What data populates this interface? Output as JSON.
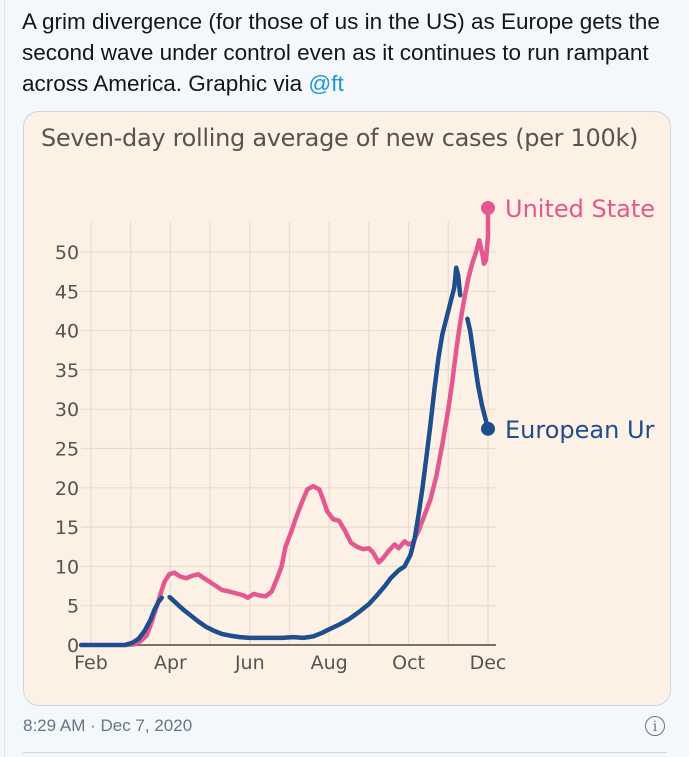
{
  "tweet": {
    "text_parts": [
      "A grim divergence (for those of us in the US) as Europe gets the second wave under control even as it continues to run rampant across America. Graphic via "
    ],
    "mention": "@ft",
    "timestamp": "8:29 AM · Dec 7, 2020",
    "info_icon": "info-circle-icon",
    "colors": {
      "text": "#14171a",
      "mention": "#1b95e0",
      "meta": "#657786"
    }
  },
  "chart_data": {
    "type": "line",
    "title": "Seven-day rolling average of new cases (per 100k)",
    "xlabel": "",
    "ylabel": "",
    "x_unit": "months since Feb 1, 2020",
    "xlim": [
      -0.25,
      10.1
    ],
    "ylim": [
      0,
      50
    ],
    "yticks": [
      0,
      5,
      10,
      15,
      20,
      25,
      30,
      35,
      40,
      45,
      50
    ],
    "xticks": [
      {
        "value": 0,
        "label": "Feb"
      },
      {
        "value": 2,
        "label": "Apr"
      },
      {
        "value": 4,
        "label": "Jun"
      },
      {
        "value": 6,
        "label": "Aug"
      },
      {
        "value": 8,
        "label": "Oct"
      },
      {
        "value": 10,
        "label": "Dec"
      }
    ],
    "grid": true,
    "legend": "inline-right-end-labels",
    "series": [
      {
        "name": "United States",
        "label_visible": "United State",
        "color": "#e5578f",
        "points": [
          [
            0.9,
            0
          ],
          [
            1.1,
            0.1
          ],
          [
            1.25,
            0.5
          ],
          [
            1.4,
            1.2
          ],
          [
            1.5,
            2.5
          ],
          [
            1.65,
            4.8
          ],
          [
            1.75,
            6.5
          ],
          [
            1.85,
            8.0
          ],
          [
            1.97,
            9.0
          ],
          [
            2.1,
            9.2
          ],
          [
            2.25,
            8.7
          ],
          [
            2.4,
            8.5
          ],
          [
            2.55,
            8.8
          ],
          [
            2.7,
            9.0
          ],
          [
            2.85,
            8.5
          ],
          [
            3.0,
            8.0
          ],
          [
            3.15,
            7.5
          ],
          [
            3.3,
            7.0
          ],
          [
            3.5,
            6.8
          ],
          [
            3.7,
            6.5
          ],
          [
            3.85,
            6.3
          ],
          [
            3.95,
            6.0
          ],
          [
            4.1,
            6.5
          ],
          [
            4.25,
            6.3
          ],
          [
            4.4,
            6.2
          ],
          [
            4.55,
            6.8
          ],
          [
            4.65,
            8.0
          ],
          [
            4.8,
            10.0
          ],
          [
            4.9,
            12.5
          ],
          [
            5.05,
            14.5
          ],
          [
            5.15,
            16.0
          ],
          [
            5.3,
            18.0
          ],
          [
            5.45,
            19.8
          ],
          [
            5.6,
            20.2
          ],
          [
            5.75,
            19.8
          ],
          [
            5.85,
            18.5
          ],
          [
            5.95,
            17.0
          ],
          [
            6.1,
            16.0
          ],
          [
            6.25,
            15.8
          ],
          [
            6.4,
            14.5
          ],
          [
            6.55,
            13.0
          ],
          [
            6.7,
            12.5
          ],
          [
            6.85,
            12.2
          ],
          [
            7.0,
            12.3
          ],
          [
            7.1,
            11.8
          ],
          [
            7.25,
            10.5
          ],
          [
            7.35,
            11.0
          ],
          [
            7.5,
            12.0
          ],
          [
            7.65,
            12.8
          ],
          [
            7.75,
            12.3
          ],
          [
            7.9,
            13.2
          ],
          [
            8.0,
            12.8
          ],
          [
            8.1,
            13.0
          ],
          [
            8.25,
            14.5
          ],
          [
            8.4,
            16.5
          ],
          [
            8.55,
            18.5
          ],
          [
            8.7,
            21.5
          ],
          [
            8.85,
            25.5
          ],
          [
            9.0,
            30.0
          ],
          [
            9.1,
            33.5
          ],
          [
            9.2,
            37.5
          ],
          [
            9.3,
            41.0
          ],
          [
            9.4,
            44.0
          ],
          [
            9.5,
            46.5
          ],
          [
            9.6,
            48.5
          ],
          [
            9.7,
            50.0
          ],
          [
            9.78,
            51.5
          ],
          [
            9.85,
            50.0
          ],
          [
            9.9,
            48.5
          ],
          [
            9.95,
            49.0
          ],
          [
            10.0,
            52.0
          ],
          [
            10.0,
            55.6
          ]
        ],
        "end_value": 55.6
      },
      {
        "name": "European Union",
        "label_visible": "European Ur",
        "color": "#1f4e8f",
        "points": [
          [
            -0.25,
            0
          ],
          [
            0.25,
            0
          ],
          [
            0.6,
            0
          ],
          [
            0.85,
            0
          ],
          [
            1.05,
            0.3
          ],
          [
            1.2,
            0.8
          ],
          [
            1.35,
            1.8
          ],
          [
            1.5,
            3.2
          ],
          [
            1.6,
            4.5
          ],
          [
            1.7,
            5.5
          ],
          [
            1.78,
            6.0
          ],
          [
            null,
            null
          ],
          [
            1.98,
            6.1
          ],
          [
            2.15,
            5.3
          ],
          [
            2.3,
            4.6
          ],
          [
            2.5,
            3.8
          ],
          [
            2.7,
            3.0
          ],
          [
            2.9,
            2.3
          ],
          [
            3.1,
            1.8
          ],
          [
            3.3,
            1.4
          ],
          [
            3.5,
            1.2
          ],
          [
            3.75,
            1.0
          ],
          [
            4.0,
            0.9
          ],
          [
            4.4,
            0.9
          ],
          [
            4.8,
            0.9
          ],
          [
            5.1,
            1.0
          ],
          [
            5.35,
            0.9
          ],
          [
            5.6,
            1.1
          ],
          [
            5.8,
            1.5
          ],
          [
            6.0,
            2.0
          ],
          [
            6.25,
            2.6
          ],
          [
            6.5,
            3.3
          ],
          [
            6.75,
            4.2
          ],
          [
            7.0,
            5.2
          ],
          [
            7.2,
            6.3
          ],
          [
            7.4,
            7.5
          ],
          [
            7.55,
            8.5
          ],
          [
            7.75,
            9.5
          ],
          [
            7.9,
            10.0
          ],
          [
            8.05,
            11.5
          ],
          [
            8.15,
            13.5
          ],
          [
            8.25,
            16.5
          ],
          [
            8.35,
            20.0
          ],
          [
            8.45,
            24.0
          ],
          [
            8.55,
            28.0
          ],
          [
            8.65,
            32.5
          ],
          [
            8.75,
            36.5
          ],
          [
            8.85,
            39.5
          ],
          [
            8.95,
            41.5
          ],
          [
            9.05,
            43.5
          ],
          [
            9.15,
            45.5
          ],
          [
            9.2,
            48.0
          ],
          [
            9.25,
            47.0
          ],
          [
            9.3,
            44.5
          ],
          [
            null,
            null
          ],
          [
            9.48,
            41.5
          ],
          [
            9.55,
            40.0
          ],
          [
            9.65,
            36.5
          ],
          [
            9.75,
            33.0
          ],
          [
            9.85,
            30.5
          ],
          [
            9.95,
            28.5
          ],
          [
            10.0,
            27.5
          ]
        ],
        "end_value": 27.5
      }
    ],
    "colors": {
      "background": "#fdf1e6",
      "grid": "#e8dcd0",
      "axis": "#7b716b",
      "tick_text": "#5a524d"
    }
  }
}
